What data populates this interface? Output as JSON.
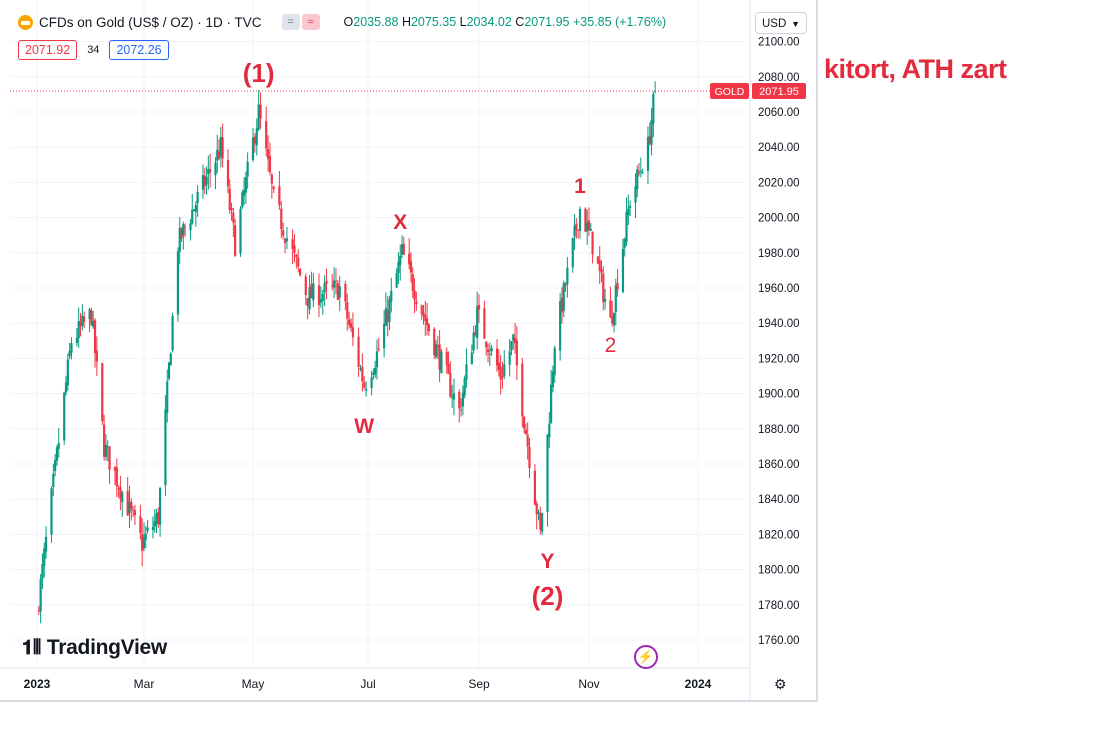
{
  "header": {
    "title": "CFDs on Gold (US$ / OZ) · 1D · TVC",
    "open_label": "O",
    "open": "2035.88",
    "high_label": "H",
    "high": "2075.35",
    "low_label": "L",
    "low": "2034.02",
    "close_label": "C",
    "close": "2071.95",
    "change": "+35.85 (+1.76%)",
    "pill_1": "=",
    "pill_2": "≈"
  },
  "bid": "2071.92",
  "spread": "34",
  "ask": "2072.26",
  "currency": "USD",
  "logo_text": "TradingView",
  "overlay_note": "kitort, ATH zart",
  "colors": {
    "up": "#089981",
    "down": "#f23645",
    "annotation": "#e22b3f",
    "price_line": "#f23645"
  },
  "chart_data": {
    "type": "candlestick",
    "symbol": "GOLD",
    "last_price": 2071.95,
    "y_ticks": [
      1760,
      1780,
      1800,
      1820,
      1840,
      1860,
      1880,
      1900,
      1920,
      1940,
      1960,
      1980,
      2000,
      2020,
      2040,
      2060,
      2080,
      2100
    ],
    "x_tick_labels": [
      "2023",
      "Mar",
      "May",
      "Jul",
      "Sep",
      "Nov",
      "2024"
    ],
    "ylim": [
      1750,
      2110
    ],
    "close_path": [
      [
        "2023-01-01",
        1775
      ],
      [
        "2023-01-20",
        1930
      ],
      [
        "2023-01-31",
        1945
      ],
      [
        "2023-02-07",
        1870
      ],
      [
        "2023-02-28",
        1815
      ],
      [
        "2023-03-09",
        1830
      ],
      [
        "2023-03-20",
        1985
      ],
      [
        "2023-04-04",
        2020
      ],
      [
        "2023-04-13",
        2040
      ],
      [
        "2023-04-21",
        1985
      ],
      [
        "2023-05-04",
        2060
      ],
      [
        "2023-05-12",
        2010
      ],
      [
        "2023-05-30",
        1955
      ],
      [
        "2023-06-16",
        1960
      ],
      [
        "2023-06-29",
        1905
      ],
      [
        "2023-07-07",
        1925
      ],
      [
        "2023-07-20",
        1980
      ],
      [
        "2023-08-01",
        1945
      ],
      [
        "2023-08-21",
        1890
      ],
      [
        "2023-08-31",
        1945
      ],
      [
        "2023-09-13",
        1910
      ],
      [
        "2023-09-20",
        1930
      ],
      [
        "2023-10-05",
        1820
      ],
      [
        "2023-10-13",
        1930
      ],
      [
        "2023-10-27",
        2005
      ],
      [
        "2023-11-03",
        1985
      ],
      [
        "2023-11-13",
        1940
      ],
      [
        "2023-11-24",
        2010
      ],
      [
        "2023-12-04",
        2040
      ],
      [
        "2023-12-08",
        2071.95
      ]
    ],
    "annotations": [
      {
        "text": "(1)",
        "date": "2023-05-04"
      },
      {
        "text": "X",
        "date": "2023-07-19"
      },
      {
        "text": "W",
        "date": "2023-06-29"
      },
      {
        "text": "Y",
        "date": "2023-10-09"
      },
      {
        "text": "(2)",
        "date": "2023-10-09"
      },
      {
        "text": "1",
        "date": "2023-10-27"
      },
      {
        "text": "2",
        "date": "2023-11-13"
      }
    ]
  }
}
